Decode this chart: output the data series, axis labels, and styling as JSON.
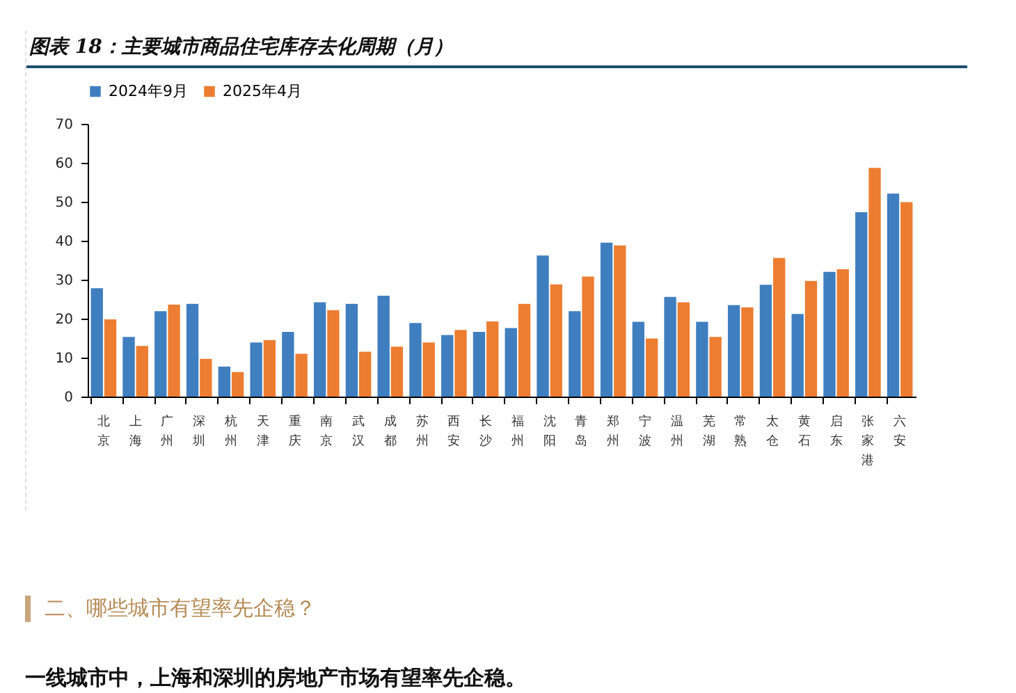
{
  "chart_data": {
    "type": "bar",
    "title": "图表 18：主要城市商品住宅库存去化周期（月）",
    "categories": [
      "北京",
      "上海",
      "广州",
      "深圳",
      "杭州",
      "天津",
      "重庆",
      "南京",
      "武汉",
      "成都",
      "苏州",
      "西安",
      "长沙",
      "福州",
      "沈阳",
      "青岛",
      "郑州",
      "宁波",
      "温州",
      "芜湖",
      "常熟",
      "太仓",
      "黄石",
      "启东",
      "张家港",
      "六安"
    ],
    "series": [
      {
        "name": "2024年9月",
        "color": "#3f7ebf",
        "values": [
          27.8,
          15.3,
          21.9,
          23.8,
          7.7,
          13.9,
          16.6,
          24.2,
          23.8,
          25.9,
          18.9,
          15.8,
          16.6,
          17.6,
          36.2,
          21.9,
          39.5,
          19.2,
          25.6,
          19.2,
          23.5,
          28.7,
          21.2,
          32.0,
          47.3,
          52.1
        ]
      },
      {
        "name": "2025年4月",
        "color": "#ed7d31",
        "values": [
          19.8,
          13.0,
          23.6,
          9.7,
          6.3,
          14.5,
          11.0,
          22.2,
          11.5,
          12.8,
          13.9,
          17.1,
          19.3,
          23.8,
          28.8,
          30.8,
          38.8,
          14.9,
          24.2,
          15.3,
          22.9,
          35.6,
          29.7,
          32.7,
          58.7,
          49.9
        ]
      }
    ],
    "ylim": [
      0,
      70
    ],
    "yticks": [
      0,
      10,
      20,
      30,
      40,
      50,
      60,
      70
    ],
    "grid": false,
    "legend": "top",
    "annotations": [
      "二、哪些城市有望率先企稳？",
      "一线城市中，上海和深圳的房地产市场有望率先企稳。"
    ]
  }
}
